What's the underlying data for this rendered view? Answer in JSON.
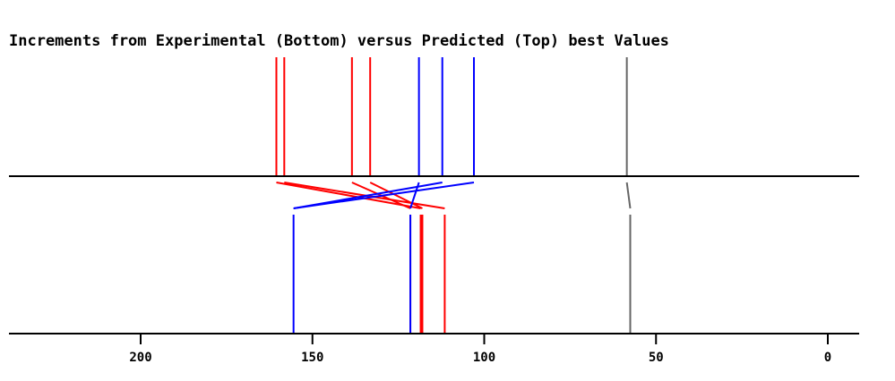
{
  "chart_data": {
    "type": "line",
    "title": "Increments from Experimental (Bottom) versus Predicted (Top) best Values",
    "xlabel": "",
    "ylabel": "",
    "xlim": [
      240,
      -9
    ],
    "x_reversed": true,
    "x_ticks": [
      200,
      150,
      100,
      50,
      0
    ],
    "grid": false,
    "legend": "none",
    "pairs": [
      {
        "top": 160.5,
        "bottom": 118.5,
        "color": "#ff0000"
      },
      {
        "top": 158.2,
        "bottom": 111.5,
        "color": "#ff0000"
      },
      {
        "top": 138.5,
        "bottom": 121.5,
        "color": "#ff0000"
      },
      {
        "top": 133.2,
        "bottom": 118.0,
        "color": "#ff0000"
      },
      {
        "top": 119.0,
        "bottom": 121.5,
        "color": "#0000ff"
      },
      {
        "top": 112.2,
        "bottom": 155.5,
        "color": "#0000ff"
      },
      {
        "top": 103.0,
        "bottom": 155.5,
        "color": "#0000ff"
      },
      {
        "top": 58.5,
        "bottom": 57.5,
        "color": "#666666"
      }
    ],
    "top_series": [
      160.5,
      158.2,
      138.5,
      133.2,
      119.0,
      112.2,
      103.0,
      58.5
    ],
    "bottom_series": [
      155.5,
      121.5,
      118.0,
      111.5,
      57.5
    ],
    "colors": {
      "red": "#ff0000",
      "blue": "#0000ff",
      "gray": "#666666",
      "axis": "#000000"
    }
  }
}
